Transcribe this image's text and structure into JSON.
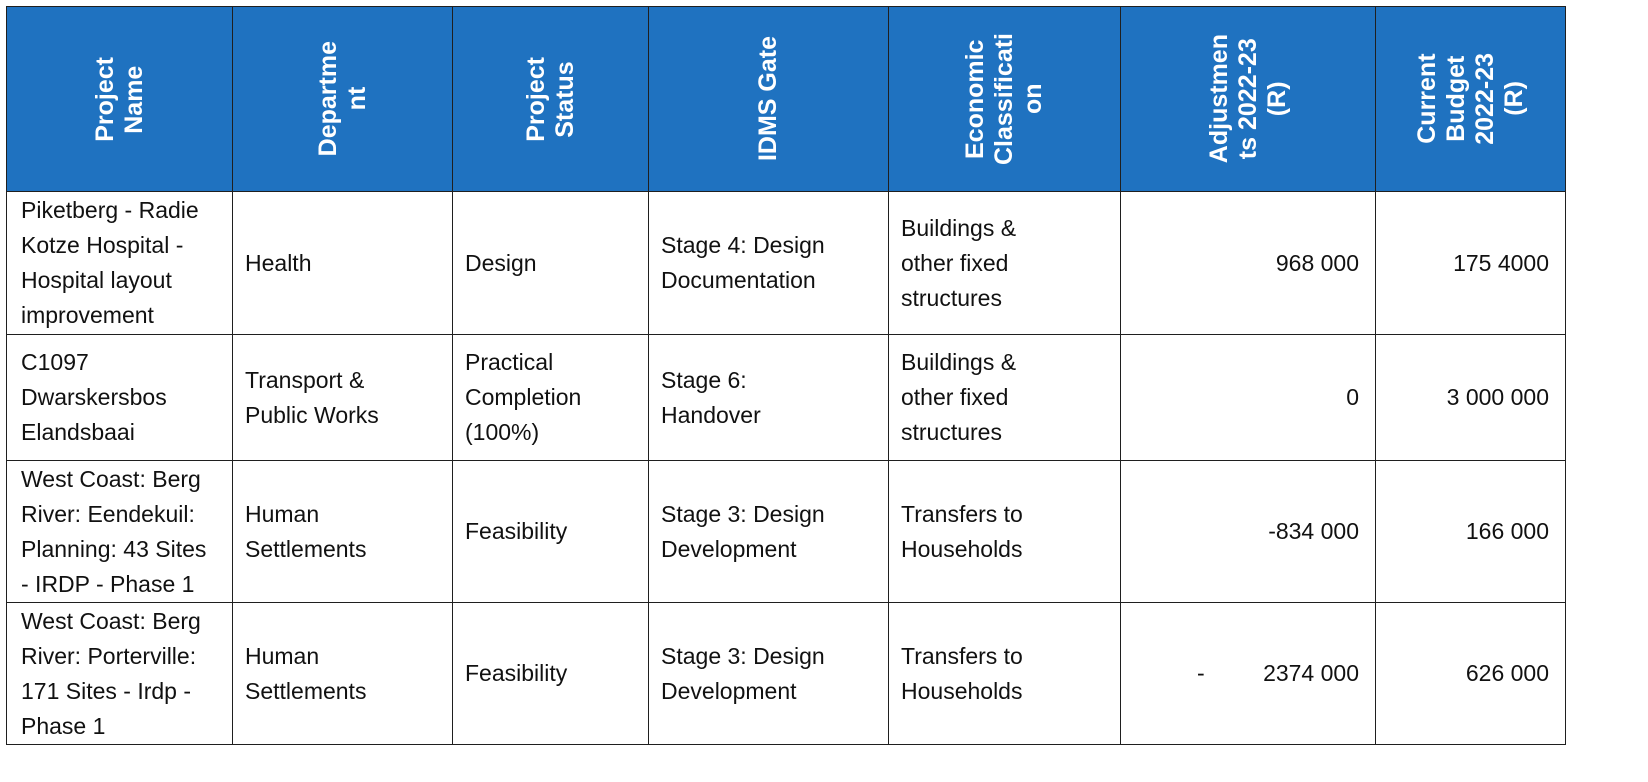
{
  "header": {
    "project_name": "Project\nName",
    "department": "Departme\nnt",
    "project_status": "Project\nStatus",
    "idms_gate": "IDMS Gate",
    "economic_classification": "Economic\nClassificati\non",
    "adjustments": "Adjustmen\nts 2022-23\n(R)",
    "current_budget": "Current\nBudget\n2022-23\n(R)"
  },
  "rows": [
    {
      "project_name": "Piketberg - Radie\nKotze Hospital -\nHospital layout\nimprovement",
      "department": "Health",
      "project_status": "Design",
      "idms_gate": "Stage 4: Design\nDocumentation",
      "economic_classification": "Buildings &\nother fixed\nstructures",
      "adjustments_sign": "",
      "adjustments": "968 000",
      "current_budget": "175 4000"
    },
    {
      "project_name": "C1097\nDwarskersbos\nElandsbaai",
      "department": "Transport &\nPublic Works",
      "project_status": "Practical\nCompletion\n(100%)",
      "idms_gate": "Stage 6:\nHandover",
      "economic_classification": "Buildings &\nother fixed\nstructures",
      "adjustments_sign": "",
      "adjustments": "0",
      "current_budget": "3 000 000"
    },
    {
      "project_name": "West Coast: Berg\nRiver: Eendekuil:\nPlanning: 43 Sites\n- IRDP - Phase 1",
      "department": "Human\nSettlements",
      "project_status": "Feasibility",
      "idms_gate": "Stage 3: Design\nDevelopment",
      "economic_classification": "Transfers to\nHouseholds",
      "adjustments_sign": "",
      "adjustments": "-834 000",
      "current_budget": "166 000"
    },
    {
      "project_name": "West Coast: Berg\nRiver: Porterville:\n171 Sites - Irdp -\nPhase 1",
      "department": "Human\nSettlements",
      "project_status": "Feasibility",
      "idms_gate": "Stage 3: Design\nDevelopment",
      "economic_classification": "Transfers to\nHouseholds",
      "adjustments_sign": "-",
      "adjustments": "2374 000",
      "current_budget": "626 000"
    }
  ],
  "colors": {
    "header_bg": "#1F72C0",
    "header_text": "#FFFFFF",
    "border": "#1F1F1F"
  }
}
